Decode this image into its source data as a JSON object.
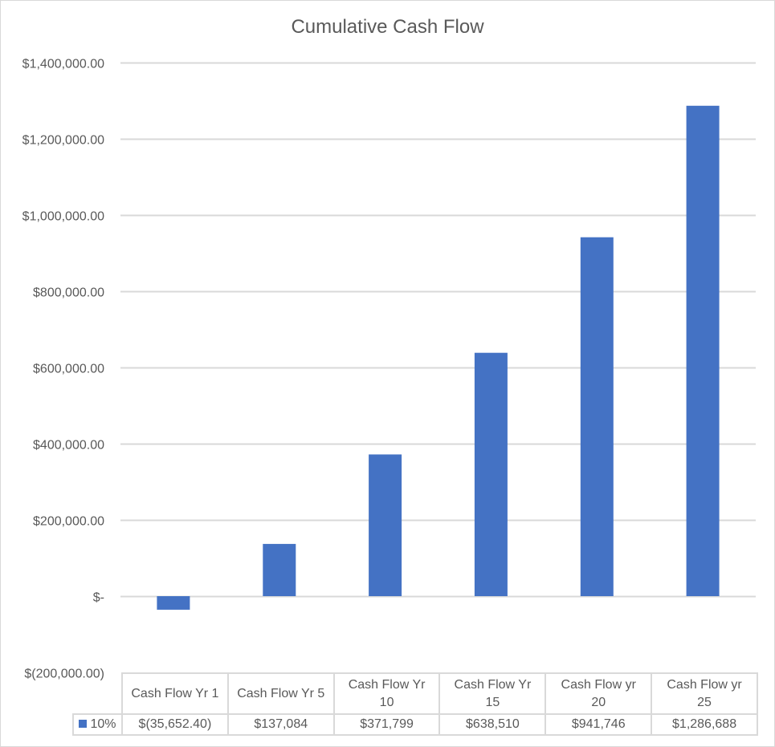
{
  "chart_data": {
    "type": "bar",
    "title": "Cumulative Cash Flow",
    "xlabel": "",
    "ylabel": "",
    "ylim": [
      -200000,
      1400000
    ],
    "grid": true,
    "y_ticks": [
      -200000,
      0,
      200000,
      400000,
      600000,
      800000,
      1000000,
      1200000,
      1400000
    ],
    "y_tick_labels": [
      "$(200,000.00)",
      "$-",
      "$200,000.00",
      "$400,000.00",
      "$600,000.00",
      "$800,000.00",
      "$1,000,000.00",
      "$1,200,000.00",
      "$1,400,000.00"
    ],
    "categories": [
      "Cash Flow Yr 1",
      "Cash Flow Yr 5",
      "Cash Flow Yr 10",
      "Cash Flow Yr 15",
      "Cash Flow yr 20",
      "Cash Flow yr 25"
    ],
    "category_lines": [
      [
        "Cash Flow Yr 1"
      ],
      [
        "Cash Flow Yr 5"
      ],
      [
        "Cash Flow Yr",
        "10"
      ],
      [
        "Cash Flow Yr",
        "15"
      ],
      [
        "Cash Flow yr",
        "20"
      ],
      [
        "Cash Flow yr",
        "25"
      ]
    ],
    "series": [
      {
        "name": "10%",
        "color": "#4472c4",
        "values": [
          -35652.4,
          137084,
          371799,
          638510,
          941746,
          1286688
        ],
        "value_labels": [
          "$(35,652.40)",
          "$137,084",
          "$371,799",
          "$638,510",
          "$941,746",
          "$1,286,688"
        ]
      }
    ],
    "legend": "data-table"
  }
}
